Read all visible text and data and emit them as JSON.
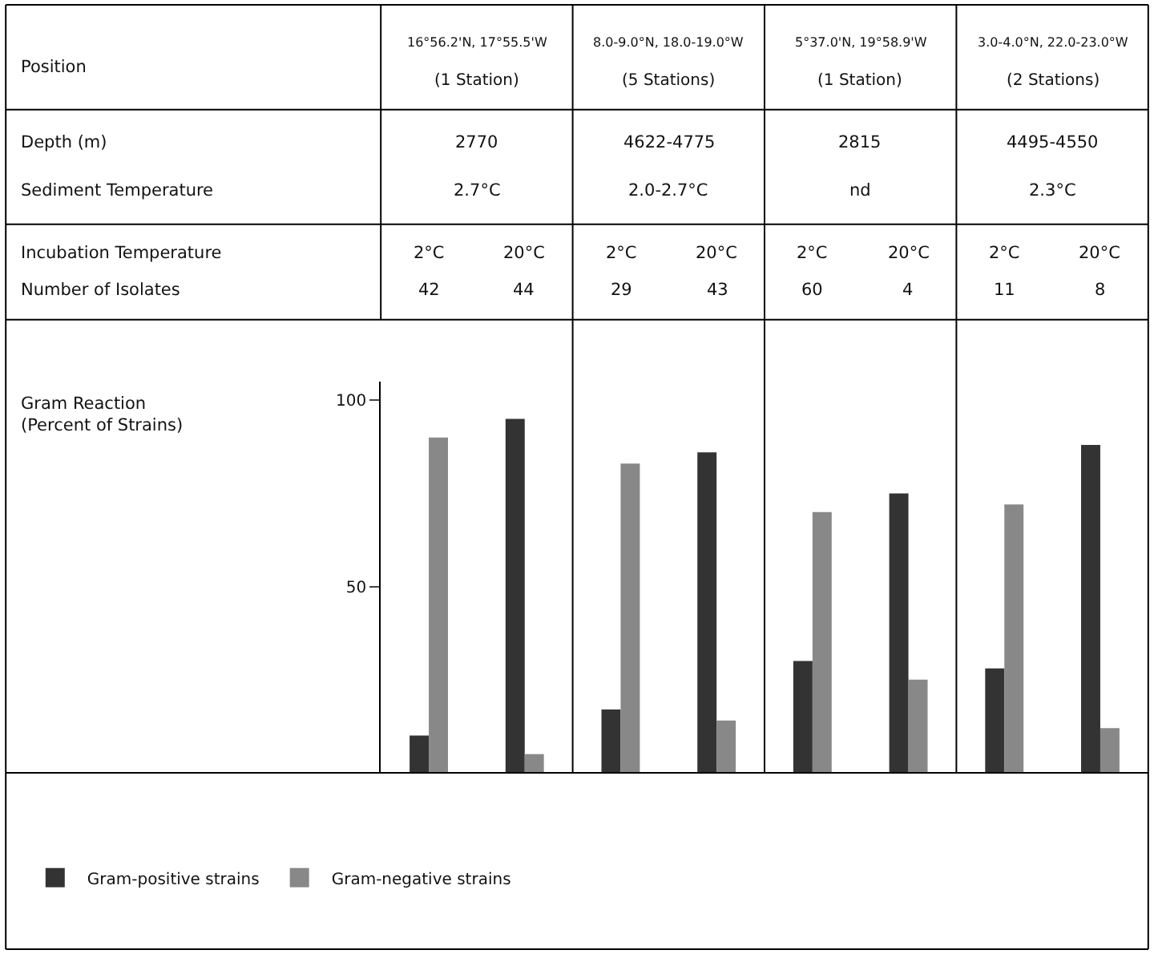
{
  "chart_data": {
    "type": "bar",
    "categories": [
      "2°C",
      "20°C",
      "2°C",
      "20°C",
      "2°C",
      "20°C",
      "2°C",
      "20°C"
    ],
    "series": [
      {
        "name": "Gram-positive strains",
        "color": "#333333",
        "values": [
          10,
          95,
          17,
          86,
          30,
          75,
          28,
          88
        ]
      },
      {
        "name": "Gram-negative strains",
        "color": "#888888",
        "values": [
          90,
          5,
          83,
          14,
          70,
          25,
          72,
          12
        ]
      }
    ],
    "ylim": [
      0,
      105
    ],
    "yticks": [
      50,
      100
    ],
    "legend": "bottom left",
    "annotations": [
      "Position",
      "Depth (m)",
      "Sediment Temperature",
      "Incubation Temperature",
      "Number of Isolates",
      "Gram Reaction\n(Percent of Strains)",
      "16°56.2'N, 17°55.5'W",
      "(1 Station)",
      "2770",
      "2.7°C",
      "8.0-9.0°N, 18.0-19.0°W",
      "(5 Stations)",
      "4622-4775",
      "2.0-2.7°C",
      "5°37.0'N, 19°58.9'W",
      "(1 Station)",
      "2815",
      "nd",
      "3.0-4.0°N, 22.0-23.0°W",
      "(2 Stations)",
      "4495-4550",
      "2.3°C",
      "42",
      "44",
      "29",
      "43",
      "60",
      "4",
      "11",
      "8"
    ]
  }
}
